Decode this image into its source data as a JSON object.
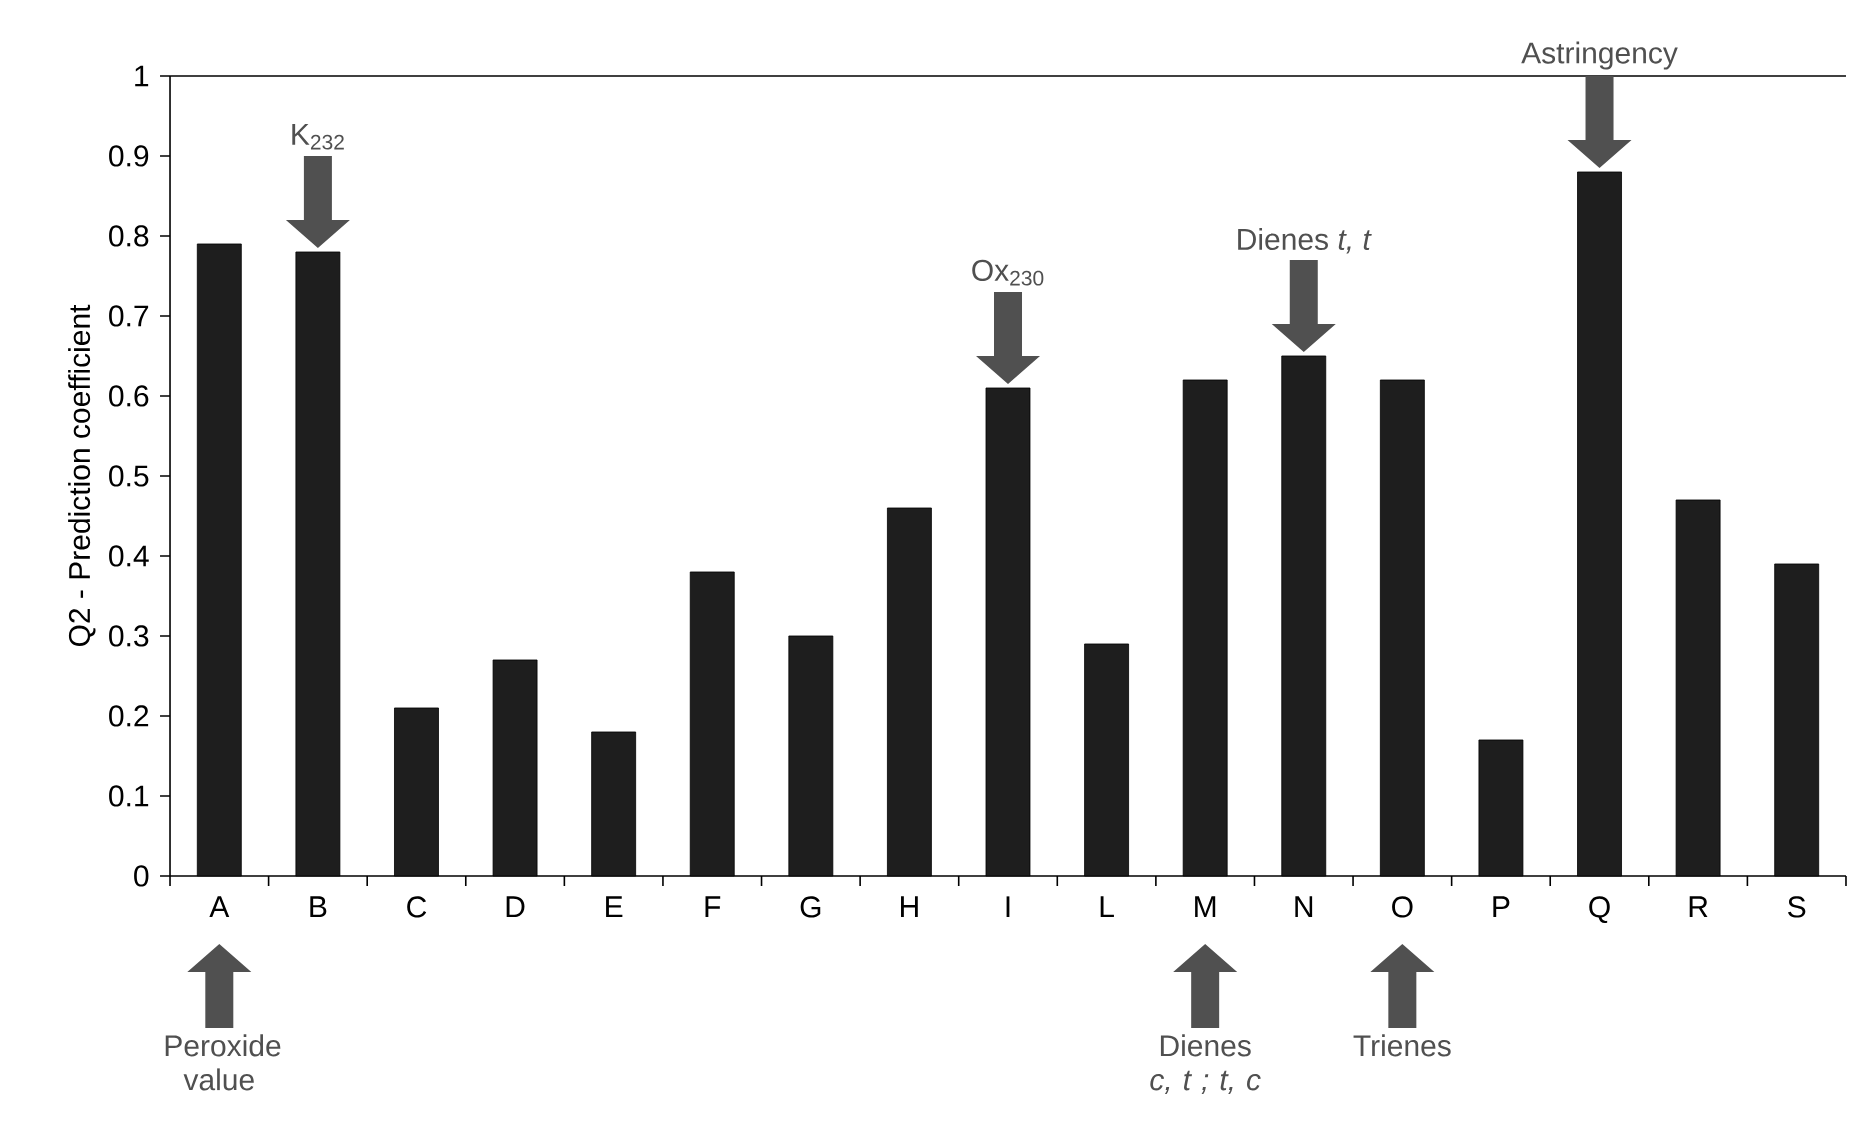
{
  "chart_data": {
    "type": "bar",
    "ylabel": "Q2 - Prediction coefficient",
    "categories": [
      "A",
      "B",
      "C",
      "D",
      "E",
      "F",
      "G",
      "H",
      "I",
      "L",
      "M",
      "N",
      "O",
      "P",
      "Q",
      "R",
      "S"
    ],
    "values": [
      0.79,
      0.78,
      0.21,
      0.27,
      0.18,
      0.38,
      0.3,
      0.46,
      0.61,
      0.29,
      0.62,
      0.65,
      0.62,
      0.17,
      0.88,
      0.47,
      0.39
    ],
    "color": "#1e1e1e",
    "ylim": [
      0,
      1
    ],
    "yticks": [
      0,
      0.1,
      0.2,
      0.3,
      0.4,
      0.5,
      0.6,
      0.7,
      0.8,
      0.9,
      1
    ],
    "annotations": [
      "K$_{232}$",
      "Ox$_{230}$",
      "Dienes *t, t*",
      "Astringency",
      "Peroxide value",
      "Dienes *c, t ; t, c*",
      "Trienes"
    ],
    "grid": false
  }
}
